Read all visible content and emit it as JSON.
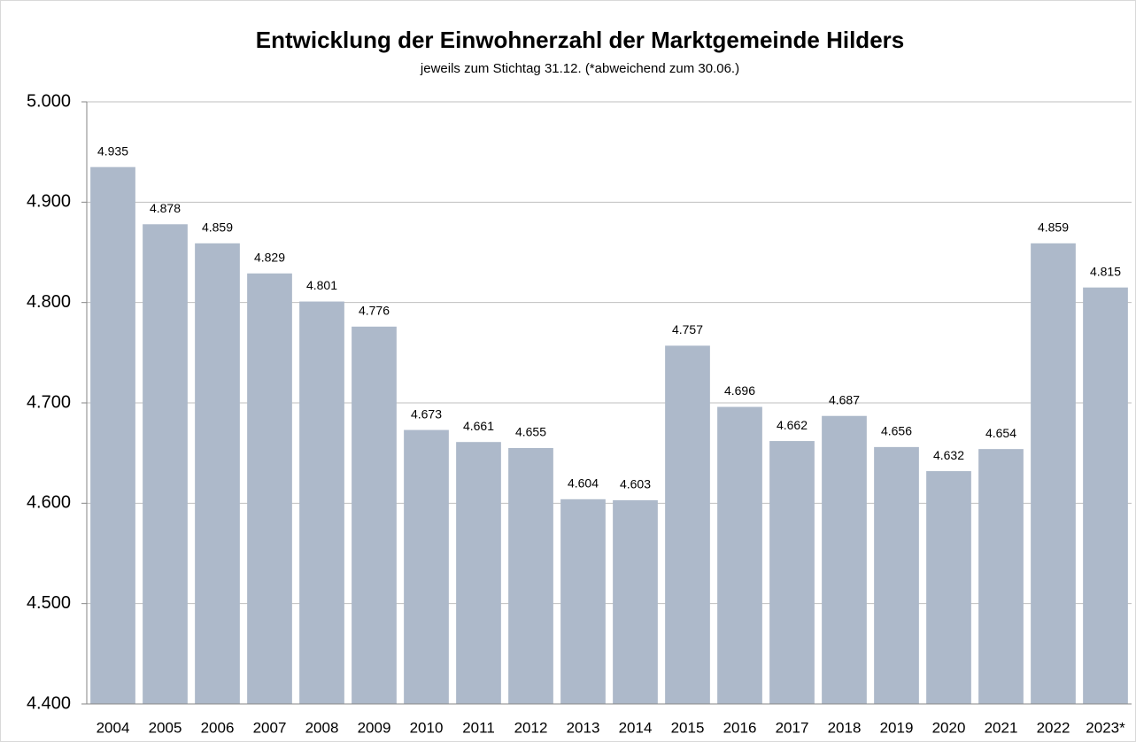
{
  "chart_data": {
    "type": "bar",
    "title": "Entwicklung der Einwohnerzahl der Marktgemeinde Hilders",
    "subtitle": "jeweils zum Stichtag 31.12. (*abweichend zum 30.06.)",
    "categories": [
      "2004",
      "2005",
      "2006",
      "2007",
      "2008",
      "2009",
      "2010",
      "2011",
      "2012",
      "2013",
      "2014",
      "2015",
      "2016",
      "2017",
      "2018",
      "2019",
      "2020",
      "2021",
      "2022",
      "2023*"
    ],
    "values": [
      4935,
      4878,
      4859,
      4829,
      4801,
      4776,
      4673,
      4661,
      4655,
      4604,
      4603,
      4757,
      4696,
      4662,
      4687,
      4656,
      4632,
      4654,
      4859,
      4815
    ],
    "value_labels": [
      "4.935",
      "4.878",
      "4.859",
      "4.829",
      "4.801",
      "4.776",
      "4.673",
      "4.661",
      "4.655",
      "4.604",
      "4.603",
      "4.757",
      "4.696",
      "4.662",
      "4.687",
      "4.656",
      "4.632",
      "4.654",
      "4.859",
      "4.815"
    ],
    "color": "#adb9ca",
    "ylim": [
      4400,
      5000
    ],
    "yticks": [
      {
        "value": 4400,
        "label": "4.400"
      },
      {
        "value": 4500,
        "label": "4.500"
      },
      {
        "value": 4600,
        "label": "4.600"
      },
      {
        "value": 4700,
        "label": "4.700"
      },
      {
        "value": 4800,
        "label": "4.800"
      },
      {
        "value": 4900,
        "label": "4.900"
      },
      {
        "value": 5000,
        "label": "5.000"
      }
    ],
    "grid": true
  }
}
